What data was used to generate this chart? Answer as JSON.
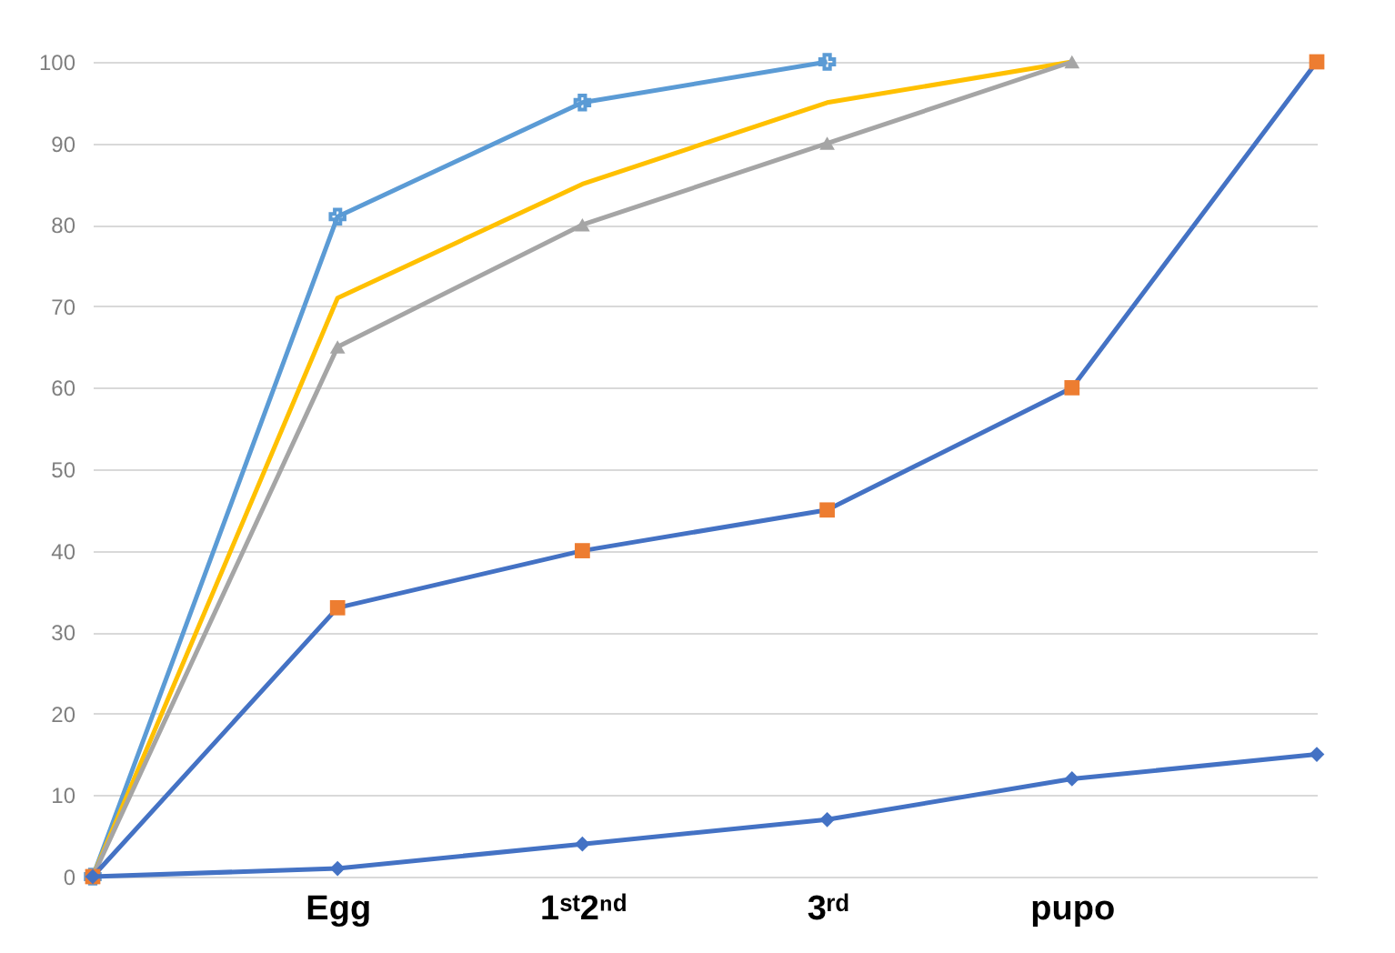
{
  "chart_data": {
    "type": "line",
    "categories": [
      null,
      "Egg",
      "1ˢᵗ2ⁿᵈ",
      "3ʳᵈ",
      "pupo",
      null
    ],
    "series": [
      {
        "color": "#5b9bd5",
        "marker": "cross",
        "values": [
          0,
          81,
          95,
          100,
          null,
          null
        ]
      },
      {
        "color": "#ffc000",
        "marker": "none",
        "values": [
          0,
          71,
          85,
          95,
          100,
          null
        ]
      },
      {
        "color": "#a5a5a5",
        "marker": "triangle",
        "values": [
          0,
          65,
          80,
          90,
          100,
          null
        ]
      },
      {
        "color": "#4472c4",
        "colors": [
          "#ed7d31",
          "#ed7d31",
          "#ed7d31",
          "#ed7d31",
          "#ed7d31",
          "#ed7d31"
        ],
        "marker": "square",
        "values": [
          0,
          33,
          40,
          45,
          60,
          100
        ]
      },
      {
        "color": "#4472c4",
        "marker": "diamond",
        "values": [
          0,
          1,
          4,
          7,
          12,
          15
        ]
      }
    ],
    "ylim": [
      0,
      100
    ],
    "yticks": [
      0,
      10,
      20,
      30,
      40,
      50,
      60,
      70,
      80,
      90,
      100
    ],
    "grid": "y",
    "line_style": "solid"
  }
}
